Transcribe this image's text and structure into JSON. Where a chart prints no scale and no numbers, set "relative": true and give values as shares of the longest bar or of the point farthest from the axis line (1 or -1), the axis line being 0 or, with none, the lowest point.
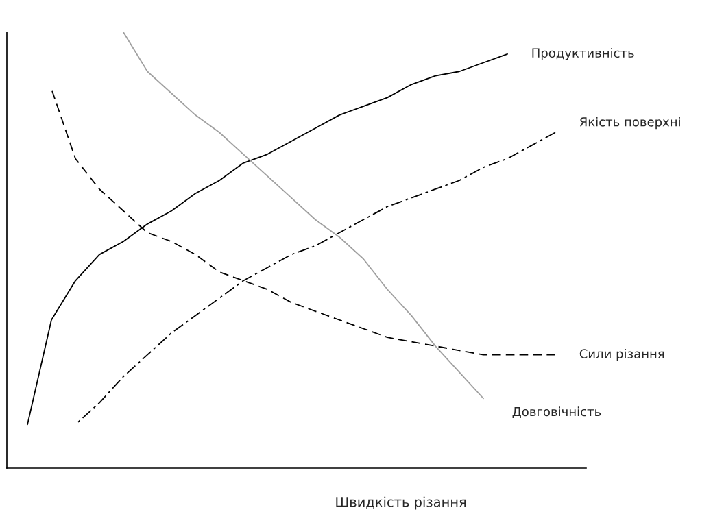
{
  "chart_data": {
    "type": "line",
    "relative": true,
    "xlabel": "Швидкість різання",
    "legend": false,
    "tick_labels": false,
    "categories": [
      null,
      null,
      null,
      null,
      null,
      null,
      null,
      null,
      null,
      null,
      null,
      null,
      null,
      null,
      null,
      null,
      null,
      null,
      null,
      null,
      null,
      null,
      null
    ],
    "series": [
      {
        "name": "Продуктивність",
        "color": "#000000",
        "line_style": "solid",
        "values": [
          0.1,
          0.34,
          0.43,
          0.49,
          0.52,
          0.56,
          0.59,
          0.63,
          0.66,
          0.7,
          0.72,
          0.75,
          0.78,
          0.81,
          0.83,
          0.85,
          0.88,
          0.9,
          0.91,
          0.93,
          0.95,
          null,
          null
        ]
      },
      {
        "name": "Якість поверхні",
        "color": "#000000",
        "line_style": "dashdot",
        "values": [
          null,
          null,
          0.1,
          0.15,
          0.21,
          0.26,
          0.31,
          0.35,
          0.39,
          0.43,
          0.46,
          0.49,
          0.51,
          0.54,
          0.57,
          0.6,
          0.62,
          0.64,
          0.66,
          0.69,
          0.71,
          0.74,
          0.77
        ]
      },
      {
        "name": "Сили різання",
        "color": "#000000",
        "line_style": "dashed",
        "values": [
          null,
          0.87,
          0.71,
          0.64,
          0.59,
          0.54,
          0.52,
          0.49,
          0.45,
          0.43,
          0.41,
          0.38,
          0.36,
          0.34,
          0.32,
          0.3,
          0.29,
          0.28,
          0.27,
          0.26,
          0.26,
          0.26,
          0.26
        ]
      },
      {
        "name": "Довговічність",
        "color": "#a0a0a0",
        "line_style": "solid",
        "values": [
          null,
          null,
          null,
          null,
          1.0,
          0.91,
          0.86,
          0.81,
          0.77,
          0.72,
          0.67,
          0.62,
          0.57,
          0.53,
          0.48,
          0.41,
          0.35,
          0.28,
          0.22,
          0.16,
          null,
          null,
          null
        ]
      }
    ]
  }
}
